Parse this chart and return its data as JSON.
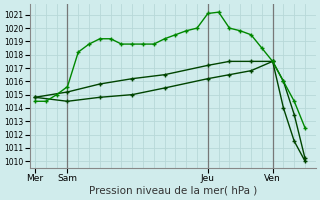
{
  "xlabel": "Pression niveau de la mer( hPa )",
  "bg_color": "#d0ecec",
  "grid_color": "#b8d8d8",
  "vline_color": "#aaaaaa",
  "line_color_bright": "#008800",
  "line_color_dark": "#004400",
  "yticks": [
    1010,
    1011,
    1012,
    1013,
    1014,
    1015,
    1016,
    1017,
    1018,
    1019,
    1020,
    1021
  ],
  "ylim": [
    1009.5,
    1021.8
  ],
  "xtick_labels": [
    "Mer",
    "Sam",
    "Jeu",
    "Ven"
  ],
  "xtick_positions": [
    0,
    3,
    16,
    22
  ],
  "vline_positions": [
    3,
    16,
    22
  ],
  "xlim": [
    -0.5,
    26
  ],
  "line1_x": [
    0,
    1,
    2,
    3,
    4,
    5,
    6,
    7,
    8,
    9,
    10,
    11,
    12,
    13,
    14,
    15,
    16,
    17,
    18,
    19,
    20,
    21,
    22,
    23,
    24,
    25
  ],
  "line1_y": [
    1014.5,
    1014.5,
    1015.0,
    1015.6,
    1018.2,
    1018.8,
    1019.2,
    1019.2,
    1018.8,
    1018.8,
    1018.8,
    1018.8,
    1019.2,
    1019.5,
    1019.8,
    1020.0,
    1021.1,
    1021.2,
    1020.0,
    1019.8,
    1019.5,
    1018.5,
    1017.5,
    1016.0,
    1014.5,
    1012.5
  ],
  "line2_x": [
    0,
    3,
    6,
    9,
    12,
    16,
    18,
    20,
    22,
    23,
    24,
    25
  ],
  "line2_y": [
    1014.8,
    1015.2,
    1015.8,
    1016.2,
    1016.5,
    1017.2,
    1017.5,
    1017.5,
    1017.5,
    1016.0,
    1013.5,
    1010.2
  ],
  "line3_x": [
    0,
    3,
    6,
    9,
    12,
    16,
    18,
    20,
    22,
    23,
    24,
    25
  ],
  "line3_y": [
    1014.8,
    1014.5,
    1014.8,
    1015.0,
    1015.5,
    1016.2,
    1016.5,
    1016.8,
    1017.5,
    1014.0,
    1011.5,
    1010.0
  ]
}
